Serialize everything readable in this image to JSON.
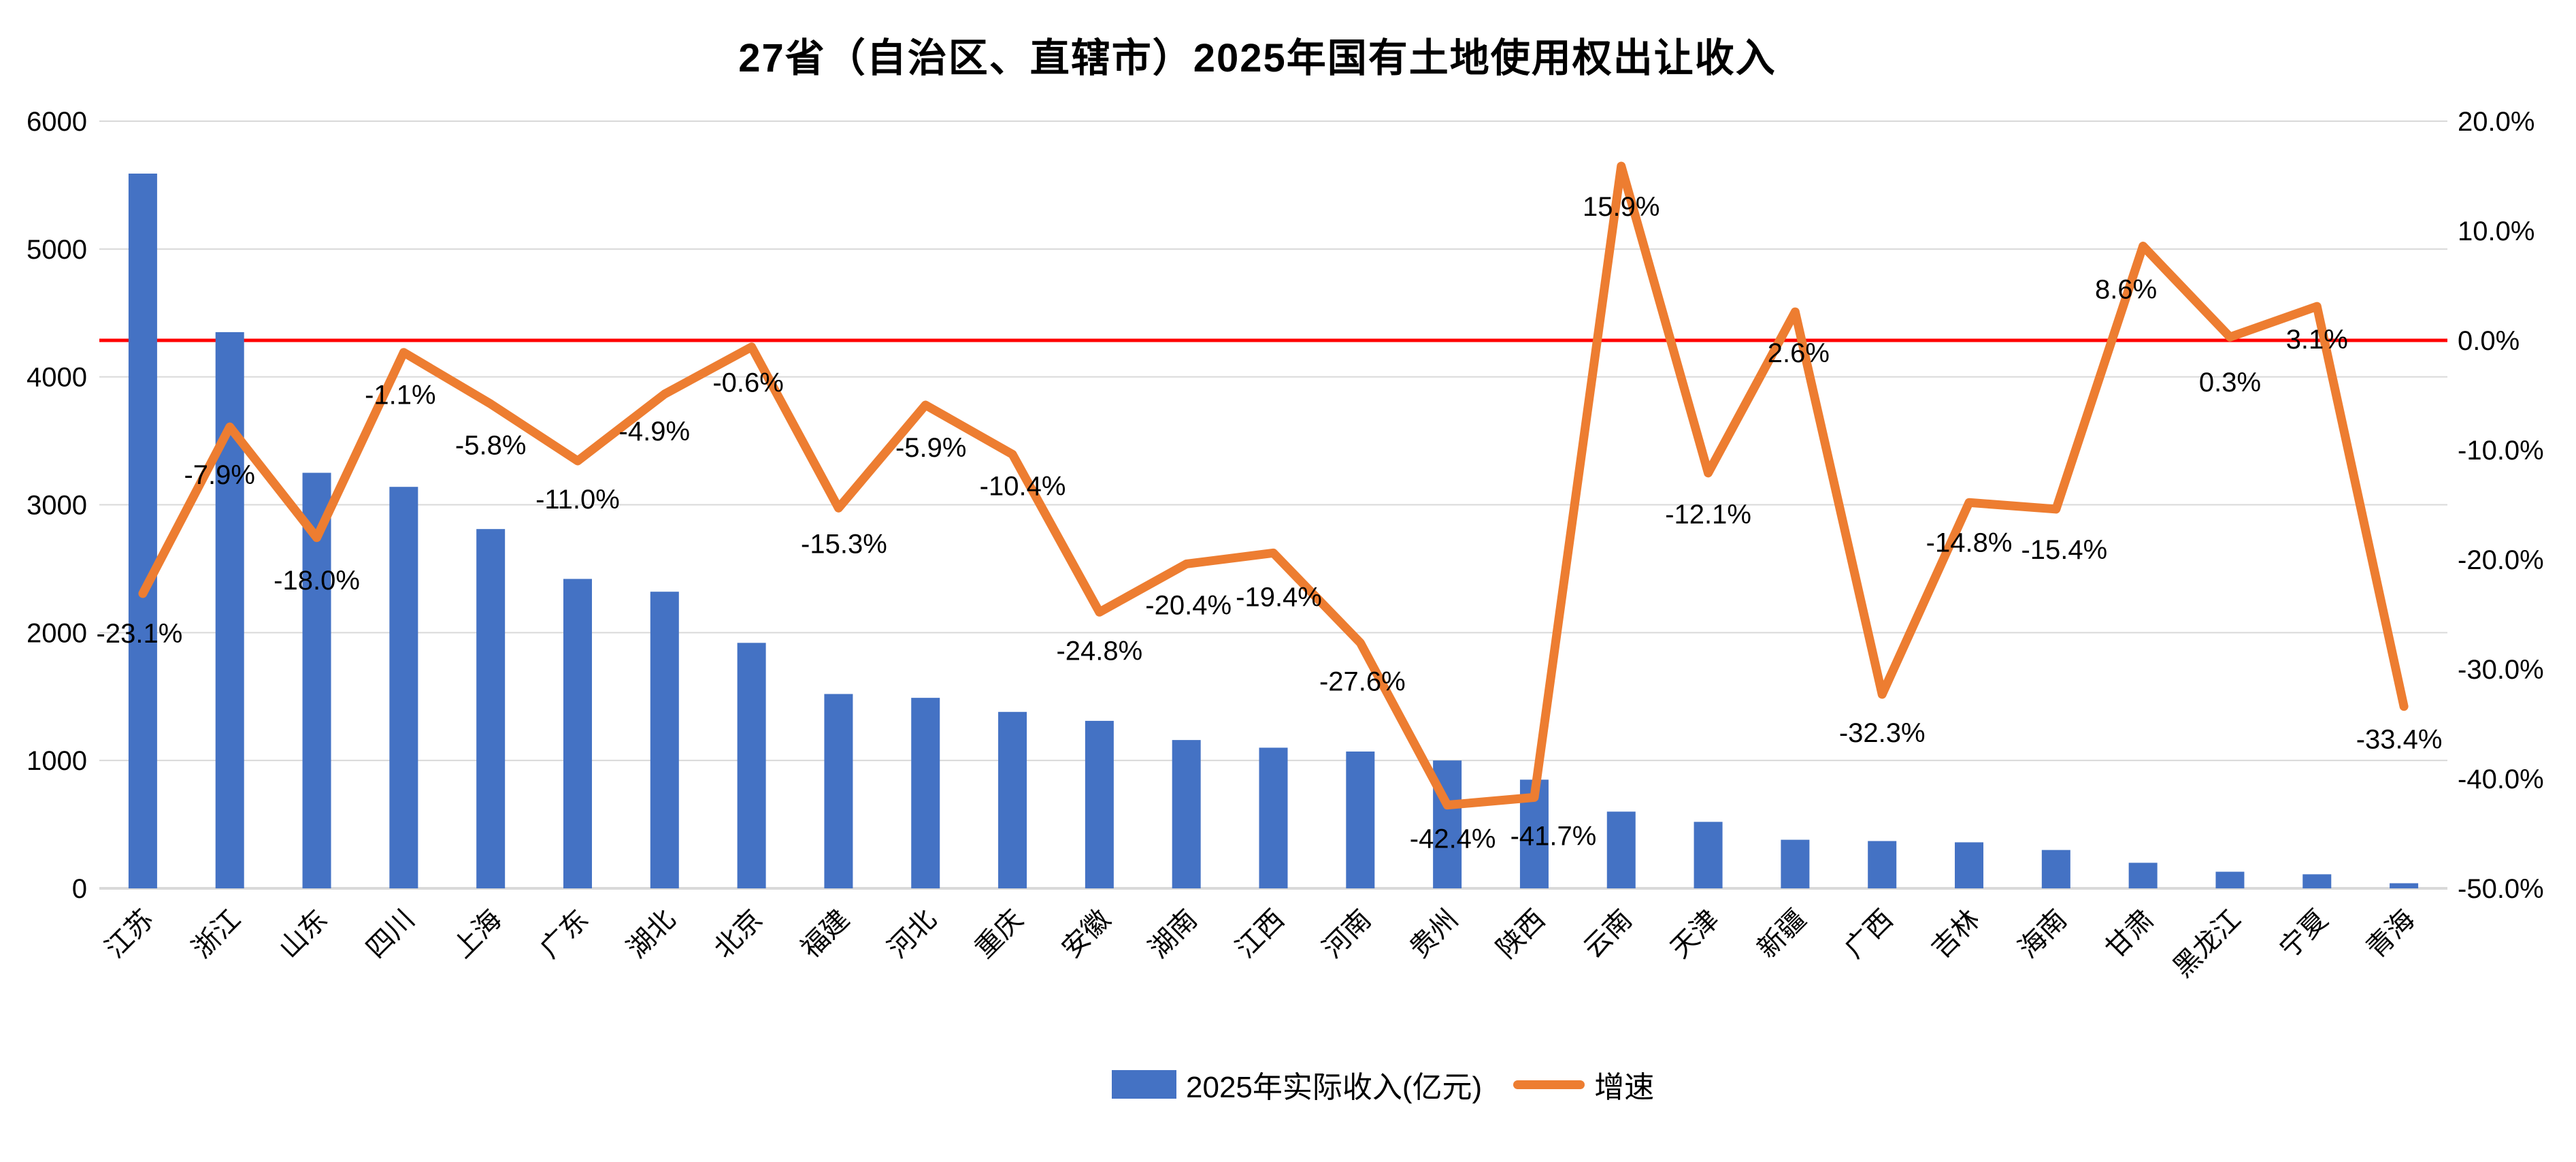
{
  "title": "27省（自治区、直辖市）2025年国有土地使用权出让收入",
  "chart_data": {
    "type": "bar+line",
    "title": "27省（自治区、直辖市）2025年国有土地使用权出让收入",
    "categories": [
      "江苏",
      "浙江",
      "山东",
      "四川",
      "上海",
      "广东",
      "湖北",
      "北京",
      "福建",
      "河北",
      "重庆",
      "安徽",
      "湖南",
      "江西",
      "河南",
      "贵州",
      "陕西",
      "云南",
      "天津",
      "新疆",
      "广西",
      "吉林",
      "海南",
      "甘肃",
      "黑龙江",
      "宁夏",
      "青海"
    ],
    "series": [
      {
        "name": "2025年实际收入(亿元)",
        "type": "bar",
        "color": "#4472C4",
        "values": [
          5590,
          4350,
          3250,
          3140,
          2810,
          2420,
          2320,
          1920,
          1520,
          1490,
          1380,
          1310,
          1160,
          1100,
          1070,
          1000,
          850,
          600,
          520,
          380,
          370,
          360,
          300,
          200,
          130,
          110,
          40
        ]
      },
      {
        "name": "增速",
        "type": "line",
        "color": "#ED7D31",
        "values": [
          -23.1,
          -7.9,
          -18.0,
          -1.1,
          -5.8,
          -11.0,
          -4.9,
          -0.6,
          -15.3,
          -5.9,
          -10.4,
          -24.8,
          -20.4,
          -19.4,
          -27.6,
          -42.4,
          -41.7,
          15.9,
          -12.1,
          2.6,
          -32.3,
          -14.8,
          -15.4,
          8.6,
          0.3,
          3.1,
          -33.4
        ],
        "point_labels": [
          "-23.1%",
          "-7.9%",
          "-18.0%",
          "-1.1%",
          "-5.8%",
          "-11.0%",
          "-4.9%",
          "-0.6%",
          "-15.3%",
          "-5.9%",
          "-10.4%",
          "-24.8%",
          "-20.4%",
          "-19.4%",
          "-27.6%",
          "-42.4%",
          "-41.7%",
          "15.9%",
          "-12.1%",
          "2.6%",
          "-32.3%",
          "-14.8%",
          "-15.4%",
          "8.6%",
          "0.3%",
          "3.1%",
          "-33.4%"
        ]
      }
    ],
    "left_axis": {
      "min": 0,
      "max": 6000,
      "step": 1000,
      "tick_labels": [
        "0",
        "1000",
        "2000",
        "3000",
        "4000",
        "5000",
        "6000"
      ]
    },
    "right_axis": {
      "min": -50,
      "max": 20,
      "step": 10,
      "tick_labels": [
        "20.0%",
        "10.0%",
        "0.0%",
        "-10.0%",
        "-20.0%",
        "-30.0%",
        "-40.0%",
        "-50.0%"
      ]
    },
    "zero_line": {
      "value": 0.0,
      "color": "#FF0000"
    },
    "grid": true,
    "grid_color": "#D9D9D9",
    "text_color": "#000000",
    "legend_position": "bottom"
  }
}
